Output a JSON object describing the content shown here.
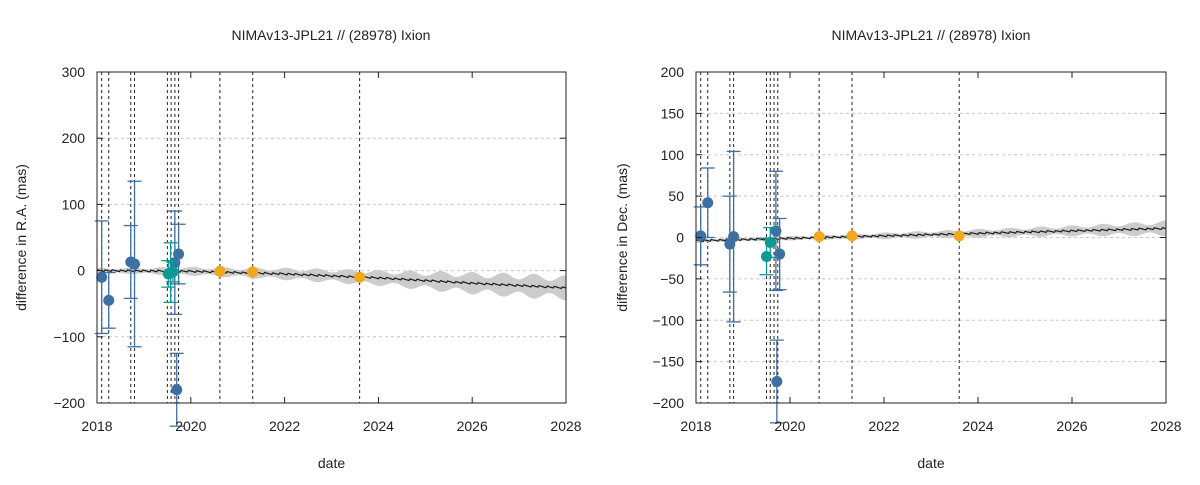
{
  "chart_data": [
    {
      "type": "scatter",
      "title": "NIMAv13-JPL21 // (28978) Ixion",
      "xlabel": "date",
      "ylabel": "difference in R.A. (mas)",
      "xlim": [
        2018,
        2028
      ],
      "ylim": [
        -200,
        300
      ],
      "x_ticks": [
        2018,
        2020,
        2022,
        2024,
        2026,
        2028
      ],
      "y_ticks": [
        -200,
        -100,
        0,
        100,
        200,
        300
      ],
      "y_tick_labels": [
        "−200",
        "−100",
        "0",
        "100",
        "200",
        "300"
      ],
      "grid": "horizontal dashed",
      "observation_dates": [
        2018.1,
        2018.25,
        2018.72,
        2018.8,
        2019.5,
        2019.58,
        2019.66,
        2019.74,
        2020.62,
        2021.32,
        2023.6
      ],
      "series": [
        {
          "color": "#3e6fa3",
          "points": [
            {
              "x": 2018.1,
              "y": -10,
              "err": 85
            },
            {
              "x": 2018.25,
              "y": -45,
              "err": 42
            },
            {
              "x": 2018.72,
              "y": 13,
              "err": 55
            },
            {
              "x": 2018.8,
              "y": 10,
              "err": 125
            },
            {
              "x": 2019.66,
              "y": 12,
              "err": 78
            },
            {
              "x": 2019.74,
              "y": 25,
              "err": 45
            },
            {
              "x": 2019.7,
              "y": -180,
              "err": 55
            }
          ]
        },
        {
          "color": "#0e9a94",
          "points": [
            {
              "x": 2019.52,
              "y": -5,
              "err": 20
            },
            {
              "x": 2019.57,
              "y": -3,
              "err": 45
            },
            {
              "x": 2019.62,
              "y": -2,
              "err": 15
            }
          ]
        },
        {
          "color": "#f2a81d",
          "points": [
            {
              "x": 2020.62,
              "y": -1
            },
            {
              "x": 2021.32,
              "y": -2
            },
            {
              "x": 2023.6,
              "y": -10
            }
          ]
        }
      ],
      "model_line": {
        "color": "#1a1a1a",
        "points": [
          [
            2018,
            0
          ],
          [
            2020,
            -1
          ],
          [
            2022,
            -5
          ],
          [
            2024,
            -11
          ],
          [
            2026,
            -19
          ],
          [
            2028,
            -26
          ]
        ]
      },
      "uncertainty_band": {
        "color": "#cccccc",
        "points": [
          [
            2018,
            3
          ],
          [
            2020,
            5
          ],
          [
            2022,
            7
          ],
          [
            2024,
            9
          ],
          [
            2025.5,
            12
          ],
          [
            2027,
            14
          ],
          [
            2028,
            14
          ]
        ]
      }
    },
    {
      "type": "scatter",
      "title": "NIMAv13-JPL21 // (28978) Ixion",
      "xlabel": "date",
      "ylabel": "difference in Dec. (mas)",
      "xlim": [
        2018,
        2028
      ],
      "ylim": [
        -200,
        200
      ],
      "x_ticks": [
        2018,
        2020,
        2022,
        2024,
        2026,
        2028
      ],
      "y_ticks": [
        -200,
        -150,
        -100,
        -50,
        0,
        50,
        100,
        150,
        200
      ],
      "y_tick_labels": [
        "−200",
        "−150",
        "−100",
        "−50",
        "0",
        "50",
        "100",
        "150",
        "200"
      ],
      "grid": "horizontal dashed",
      "observation_dates": [
        2018.1,
        2018.25,
        2018.72,
        2018.8,
        2019.5,
        2019.58,
        2019.66,
        2019.74,
        2020.62,
        2021.32,
        2023.6
      ],
      "series": [
        {
          "color": "#3e6fa3",
          "points": [
            {
              "x": 2018.1,
              "y": 2,
              "err": 35
            },
            {
              "x": 2018.25,
              "y": 42,
              "err": 42
            },
            {
              "x": 2018.72,
              "y": -8,
              "err": 58
            },
            {
              "x": 2018.8,
              "y": 1,
              "err": 103
            },
            {
              "x": 2019.7,
              "y": 8,
              "err": 72
            },
            {
              "x": 2019.78,
              "y": -20,
              "err": 43
            },
            {
              "x": 2019.72,
              "y": -174,
              "err": 50
            }
          ]
        },
        {
          "color": "#0e9a94",
          "points": [
            {
              "x": 2019.5,
              "y": -23,
              "err": 22
            },
            {
              "x": 2019.58,
              "y": -6,
              "err": 18
            }
          ]
        },
        {
          "color": "#f2a81d",
          "points": [
            {
              "x": 2020.62,
              "y": 1
            },
            {
              "x": 2021.32,
              "y": 2
            },
            {
              "x": 2023.6,
              "y": 2
            }
          ]
        }
      ],
      "model_line": {
        "color": "#1a1a1a",
        "points": [
          [
            2018,
            -4
          ],
          [
            2020,
            -1
          ],
          [
            2022,
            2
          ],
          [
            2024,
            5
          ],
          [
            2026,
            8
          ],
          [
            2028,
            11
          ]
        ]
      },
      "uncertainty_band": {
        "color": "#cccccc",
        "points": [
          [
            2018,
            2
          ],
          [
            2020,
            2
          ],
          [
            2022,
            3
          ],
          [
            2024,
            4
          ],
          [
            2026,
            5
          ],
          [
            2028,
            7
          ]
        ]
      }
    }
  ]
}
